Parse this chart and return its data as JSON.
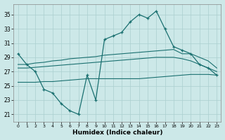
{
  "xlabel": "Humidex (Indice chaleur)",
  "xlim": [
    -0.5,
    23.5
  ],
  "ylim": [
    20.0,
    36.5
  ],
  "yticks": [
    21,
    23,
    25,
    27,
    29,
    31,
    33,
    35
  ],
  "xticks": [
    0,
    1,
    2,
    3,
    4,
    5,
    6,
    7,
    8,
    9,
    10,
    11,
    12,
    13,
    14,
    15,
    16,
    17,
    18,
    19,
    20,
    21,
    22,
    23
  ],
  "bg_color": "#cce8e8",
  "line_color": "#1a7070",
  "grid_color": "#aacfcf",
  "humidex": [
    29.5,
    28.0,
    27.0,
    24.5,
    24.0,
    22.5,
    21.5,
    21.0,
    26.5,
    23.0,
    31.5,
    32.0,
    32.5,
    34.0,
    35.0,
    34.5,
    35.5,
    33.0,
    30.5,
    30.0,
    29.5,
    28.0,
    27.5,
    26.5
  ],
  "line_max": [
    28.0,
    28.0,
    28.2,
    28.3,
    28.5,
    28.6,
    28.8,
    28.9,
    29.0,
    29.1,
    29.3,
    29.4,
    29.5,
    29.6,
    29.7,
    29.8,
    29.9,
    30.0,
    30.1,
    29.5,
    29.5,
    29.0,
    28.5,
    27.5
  ],
  "line_mean": [
    27.5,
    27.5,
    27.6,
    27.7,
    27.8,
    27.9,
    28.0,
    28.1,
    28.2,
    28.3,
    28.4,
    28.5,
    28.6,
    28.7,
    28.8,
    28.9,
    29.0,
    29.0,
    29.0,
    28.8,
    28.5,
    28.0,
    27.5,
    27.0
  ],
  "line_min": [
    25.5,
    25.5,
    25.5,
    25.6,
    25.6,
    25.7,
    25.8,
    25.9,
    26.0,
    26.0,
    26.0,
    26.0,
    26.0,
    26.0,
    26.0,
    26.1,
    26.2,
    26.3,
    26.4,
    26.5,
    26.6,
    26.6,
    26.6,
    26.5
  ]
}
